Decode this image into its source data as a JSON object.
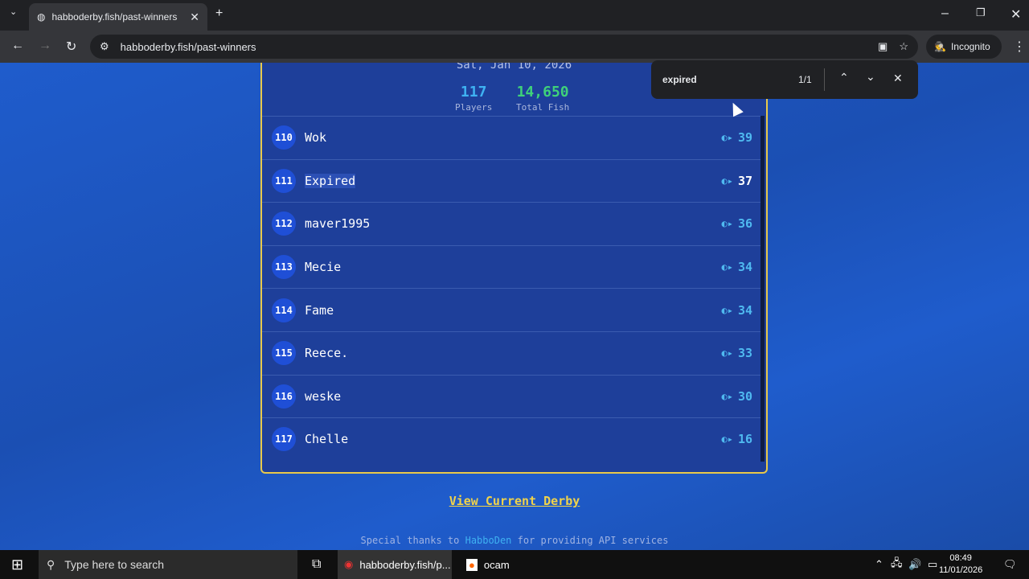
{
  "browser": {
    "tab_title": "habboderby.fish/past-winners",
    "url": "habboderby.fish/past-winners",
    "incognito": "Incognito"
  },
  "find": {
    "query": "expired",
    "count": "1/1"
  },
  "derby": {
    "date": "Sat, Jan 10, 2026",
    "players": "117",
    "players_label": "Players",
    "total_fish": "14,650",
    "total_fish_label": "Total Fish"
  },
  "rows": [
    {
      "rank": "110",
      "name": "Wok",
      "score": "39"
    },
    {
      "rank": "111",
      "name": "Expired",
      "score": "37"
    },
    {
      "rank": "112",
      "name": "maver1995",
      "score": "36"
    },
    {
      "rank": "113",
      "name": "Mecie",
      "score": "34"
    },
    {
      "rank": "114",
      "name": "Fame",
      "score": "34"
    },
    {
      "rank": "115",
      "name": "Reece.",
      "score": "33"
    },
    {
      "rank": "116",
      "name": "weske",
      "score": "30"
    },
    {
      "rank": "117",
      "name": "Chelle",
      "score": "16"
    }
  ],
  "footer": {
    "link": "View Current Derby",
    "thanks_pre": "Special thanks to",
    "thanks_link": "HabboDen",
    "thanks_post": "for providing API services"
  },
  "taskbar": {
    "search": "Type here to search",
    "chrome": "habboderby.fish/p...",
    "ocam": "ocam",
    "time": "08:49",
    "date": "11/01/2026"
  },
  "colors": {
    "card_border": "#e9c94a",
    "players": "#3fb2f2",
    "fish": "#3fd17a",
    "link": "#f0d34a"
  }
}
